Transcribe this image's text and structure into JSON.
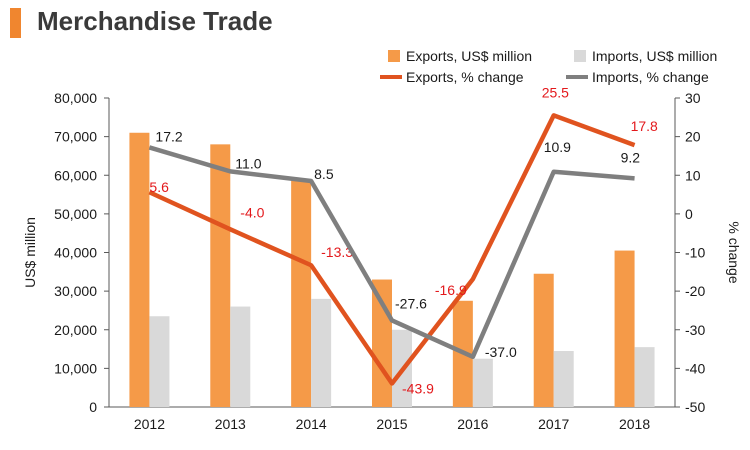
{
  "title": "Merchandise Trade",
  "chart_data": {
    "type": "bar",
    "categories": [
      "2012",
      "2013",
      "2014",
      "2015",
      "2016",
      "2017",
      "2018"
    ],
    "series": [
      {
        "name": "Exports, US$ million",
        "kind": "bar",
        "axis": "left",
        "values": [
          71000,
          68000,
          59000,
          33000,
          27500,
          34500,
          40500
        ],
        "color": "#f59a48"
      },
      {
        "name": "Imports, US$ million",
        "kind": "bar",
        "axis": "left",
        "values": [
          23500,
          26000,
          28000,
          20000,
          12500,
          14500,
          15500
        ],
        "color": "#d9d9d9"
      },
      {
        "name": "Exports, % change",
        "kind": "line",
        "axis": "right",
        "values": [
          5.6,
          -4.0,
          -13.3,
          -43.9,
          -16.9,
          25.5,
          17.8
        ],
        "labels": [
          "5.6",
          "-4.0",
          "-13.3",
          "-43.9",
          "-16.9",
          "25.5",
          "17.8"
        ],
        "color": "#e0531f",
        "label_color": "#e3191c"
      },
      {
        "name": "Imports, % change",
        "kind": "line",
        "axis": "right",
        "values": [
          17.2,
          11.0,
          8.5,
          -27.6,
          -37.0,
          10.9,
          9.2
        ],
        "labels": [
          "17.2",
          "11.0",
          "8.5",
          "-27.6",
          "-37.0",
          "10.9",
          "9.2"
        ],
        "color": "#7f7f7f",
        "label_color": "#1a1a1a"
      }
    ],
    "ylabel": "US$ million",
    "ylabel_right": "% change",
    "ylim": [
      0,
      80000
    ],
    "yticks": [
      "0",
      "10,000",
      "20,000",
      "30,000",
      "40,000",
      "50,000",
      "60,000",
      "70,000",
      "80,000"
    ],
    "ylim_right": [
      -50,
      30
    ],
    "yticks_right": [
      "-50",
      "-40",
      "-30",
      "-20",
      "-10",
      "0",
      "10",
      "20",
      "30"
    ],
    "grid": false,
    "legend_position": "top-right"
  }
}
